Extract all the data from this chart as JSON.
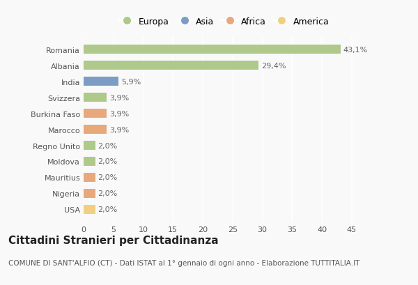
{
  "countries": [
    "Romania",
    "Albania",
    "India",
    "Svizzera",
    "Burkina Faso",
    "Marocco",
    "Regno Unito",
    "Moldova",
    "Mauritius",
    "Nigeria",
    "USA"
  ],
  "values": [
    43.1,
    29.4,
    5.9,
    3.9,
    3.9,
    3.9,
    2.0,
    2.0,
    2.0,
    2.0,
    2.0
  ],
  "labels": [
    "43,1%",
    "29,4%",
    "5,9%",
    "3,9%",
    "3,9%",
    "3,9%",
    "2,0%",
    "2,0%",
    "2,0%",
    "2,0%",
    "2,0%"
  ],
  "colors": [
    "#aec98a",
    "#aec98a",
    "#7b9dc4",
    "#aec98a",
    "#e8a87c",
    "#e8a87c",
    "#aec98a",
    "#aec98a",
    "#e8a87c",
    "#e8a87c",
    "#f0d080"
  ],
  "legend_labels": [
    "Europa",
    "Asia",
    "Africa",
    "America"
  ],
  "legend_colors": [
    "#aec98a",
    "#7b9dc4",
    "#e8a87c",
    "#f0d080"
  ],
  "title": "Cittadini Stranieri per Cittadinanza",
  "subtitle": "COMUNE DI SANT'ALFIO (CT) - Dati ISTAT al 1° gennaio di ogni anno - Elaborazione TUTTITALIA.IT",
  "xlim": [
    0,
    47
  ],
  "xticks": [
    0,
    5,
    10,
    15,
    20,
    25,
    30,
    35,
    40,
    45
  ],
  "bg_color": "#f9f9f9",
  "grid_color": "#ffffff",
  "bar_height": 0.55,
  "title_fontsize": 11,
  "subtitle_fontsize": 7.5,
  "label_fontsize": 8,
  "tick_fontsize": 8,
  "legend_fontsize": 9
}
